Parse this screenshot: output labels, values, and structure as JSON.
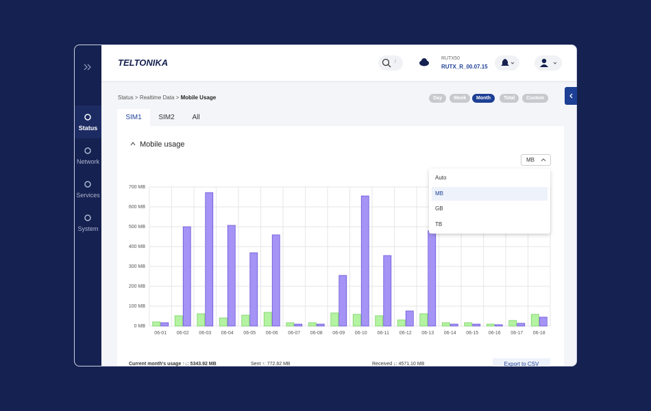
{
  "sidebar": {
    "items": [
      "Status",
      "Network",
      "Services",
      "System"
    ],
    "active": 0
  },
  "header": {
    "logo": "TELTONIKA",
    "search_key": "/",
    "device": "RUTX50",
    "firmware": "RUTX_R_00.07.15"
  },
  "breadcrumb": [
    "Status",
    "Realtime Data",
    "Mobile Usage"
  ],
  "tabs": [
    "SIM1",
    "SIM2",
    "All"
  ],
  "active_tab": 0,
  "panel": {
    "title": "Mobile usage",
    "ranges": [
      "Day",
      "Week",
      "Month",
      "Total",
      "Custom"
    ],
    "active_range": 2,
    "unit": "MB",
    "unit_options": [
      "Auto",
      "MB",
      "GB",
      "TB"
    ],
    "selected_unit": 1
  },
  "chart_data": {
    "type": "bar",
    "categories": [
      "06-01",
      "06-02",
      "06-03",
      "06-04",
      "06-05",
      "06-06",
      "06-07",
      "06-08",
      "06-09",
      "06-10",
      "06-11",
      "06-12",
      "06-13",
      "06-14",
      "06-15",
      "06-16",
      "06-17",
      "06-18"
    ],
    "series": [
      {
        "color": "#b4f3a2",
        "values": [
          21,
          52,
          62,
          41,
          55,
          69,
          17,
          17,
          66,
          59,
          52,
          31,
          62,
          17,
          17,
          10,
          28,
          59
        ]
      },
      {
        "color": "#a593f5",
        "values": [
          17,
          500,
          672,
          507,
          369,
          459,
          10,
          10,
          255,
          655,
          355,
          76,
          480,
          10,
          10,
          7,
          14,
          45
        ]
      }
    ],
    "ylim": [
      0,
      700
    ],
    "yticks": [
      {
        "value": 0,
        "label": "0 MB"
      },
      {
        "value": 100,
        "label": "100 MB"
      },
      {
        "value": 200,
        "label": "200 MB"
      },
      {
        "value": 300,
        "label": "300 MB"
      },
      {
        "value": 400,
        "label": "400 MB"
      },
      {
        "value": 500,
        "label": "500 MB"
      },
      {
        "value": 600,
        "label": "600 MB"
      },
      {
        "value": 700,
        "label": "700 MB"
      }
    ],
    "grid": true
  },
  "footer": {
    "usage": "Current month's usage ↑↓: 5343.92 MB",
    "sent": "Sent ↑: 772.82 MB",
    "received": "Received ↓: 4571.10 MB",
    "export": "Export to CSV"
  }
}
